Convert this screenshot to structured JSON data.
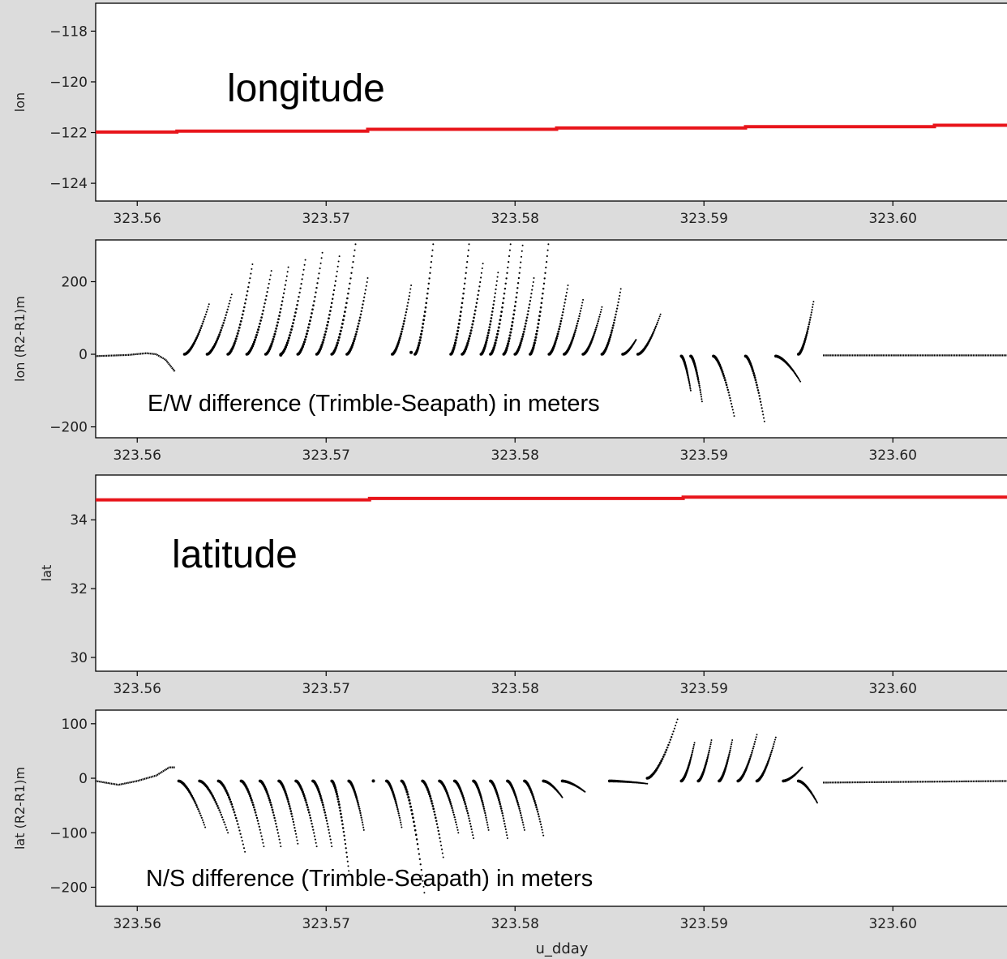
{
  "chart_data": [
    {
      "type": "line",
      "title": "",
      "ylabel": "lon",
      "xlabel": "",
      "annotation": "longitude",
      "xlim": [
        323.5578,
        323.6063
      ],
      "ylim": [
        -124.7,
        -116.9
      ],
      "xticks": [
        323.56,
        323.57,
        323.58,
        323.59,
        323.6
      ],
      "xtick_labels": [
        "323.56",
        "323.57",
        "323.58",
        "323.59",
        "323.60"
      ],
      "yticks": [
        -118,
        -120,
        -122,
        -124
      ],
      "ytick_labels": [
        "−118",
        "−120",
        "−122",
        "−124"
      ],
      "color": "#e8151b",
      "series": [
        {
          "x": [
            323.5578,
            323.5621,
            323.5621,
            323.5722,
            323.5722,
            323.5822,
            323.5822,
            323.5922,
            323.5922,
            323.6022,
            323.6022,
            323.6063
          ],
          "y": [
            -121.98,
            -121.98,
            -121.94,
            -121.94,
            -121.87,
            -121.87,
            -121.82,
            -121.82,
            -121.77,
            -121.77,
            -121.71,
            -121.71
          ]
        }
      ]
    },
    {
      "type": "scatter",
      "title": "",
      "ylabel": "lon (R2-R1)m",
      "xlabel": "",
      "annotation": "E/W difference (Trimble-Seapath) in meters",
      "xlim": [
        323.5578,
        323.6063
      ],
      "ylim": [
        -230,
        315
      ],
      "xticks": [
        323.56,
        323.57,
        323.58,
        323.59,
        323.6
      ],
      "xtick_labels": [
        "323.56",
        "323.57",
        "323.58",
        "323.59",
        "323.60"
      ],
      "yticks": [
        200,
        0,
        -200
      ],
      "ytick_labels": [
        "200",
        "0",
        "−200"
      ],
      "color": "#000000",
      "baseline": [
        [
          323.5578,
          -5
        ],
        [
          323.5595,
          -2
        ],
        [
          323.5605,
          3
        ],
        [
          323.561,
          0
        ],
        [
          323.5615,
          -15
        ],
        [
          323.562,
          -48
        ]
      ],
      "baseline2": [
        [
          323.5963,
          -3
        ],
        [
          323.6063,
          -3
        ]
      ],
      "segments": [
        [
          323.5625,
          323.5638,
          0,
          138
        ],
        [
          323.5637,
          323.565,
          0,
          165
        ],
        [
          323.5648,
          323.5661,
          0,
          248
        ],
        [
          323.5658,
          323.5671,
          0,
          230
        ],
        [
          323.5668,
          323.568,
          0,
          240
        ],
        [
          323.5676,
          323.5689,
          0,
          260
        ],
        [
          323.5685,
          323.5698,
          0,
          280
        ],
        [
          323.5695,
          323.5707,
          0,
          270
        ],
        [
          323.5703,
          323.5716,
          0,
          320
        ],
        [
          323.5711,
          323.5722,
          0,
          210
        ],
        [
          323.5735,
          323.5745,
          0,
          190
        ],
        [
          323.5747,
          323.5757,
          0,
          320
        ],
        [
          323.5766,
          323.5776,
          0,
          320
        ],
        [
          323.5772,
          323.5783,
          0,
          250
        ],
        [
          323.5782,
          323.5791,
          0,
          225
        ],
        [
          323.5787,
          323.5798,
          0,
          320
        ],
        [
          323.5794,
          323.5804,
          0,
          300
        ],
        [
          323.58,
          323.581,
          0,
          210
        ],
        [
          323.5808,
          323.5818,
          0,
          320
        ],
        [
          323.5818,
          323.5828,
          0,
          190
        ],
        [
          323.5826,
          323.5836,
          0,
          150
        ],
        [
          323.5836,
          323.5846,
          0,
          130
        ],
        [
          323.5846,
          323.5856,
          0,
          180
        ],
        [
          323.5857,
          323.5864,
          0,
          40
        ],
        [
          323.5865,
          323.5877,
          0,
          110
        ],
        [
          323.5888,
          323.5893,
          -5,
          -100
        ],
        [
          323.5893,
          323.5899,
          -5,
          -130
        ],
        [
          323.5905,
          323.5916,
          -5,
          -170
        ],
        [
          323.5922,
          323.5932,
          -5,
          -185
        ],
        [
          323.5938,
          323.5951,
          -5,
          -75
        ],
        [
          323.595,
          323.5958,
          0,
          145
        ]
      ],
      "dots": [
        [
          323.5745,
          5
        ],
        [
          323.5676,
          -2
        ]
      ]
    },
    {
      "type": "line",
      "title": "",
      "ylabel": "lat",
      "xlabel": "",
      "annotation": "latitude",
      "xlim": [
        323.5578,
        323.6063
      ],
      "ylim": [
        29.6,
        35.3
      ],
      "xticks": [
        323.56,
        323.57,
        323.58,
        323.59,
        323.6
      ],
      "xtick_labels": [
        "323.56",
        "323.57",
        "323.58",
        "323.59",
        "323.60"
      ],
      "yticks": [
        34,
        32,
        30
      ],
      "ytick_labels": [
        "34",
        "32",
        "30"
      ],
      "color": "#e8151b",
      "series": [
        {
          "x": [
            323.5578,
            323.5723,
            323.5723,
            323.5889,
            323.5889,
            323.6063
          ],
          "y": [
            34.58,
            34.58,
            34.62,
            34.62,
            34.66,
            34.66
          ]
        }
      ]
    },
    {
      "type": "scatter",
      "title": "",
      "ylabel": "lat (R2-R1)m",
      "xlabel": "u_dday",
      "annotation": "N/S difference (Trimble-Seapath) in meters",
      "xlim": [
        323.5578,
        323.6063
      ],
      "ylim": [
        -235,
        125
      ],
      "xticks": [
        323.56,
        323.57,
        323.58,
        323.59,
        323.6
      ],
      "xtick_labels": [
        "323.56",
        "323.57",
        "323.58",
        "323.59",
        "323.60"
      ],
      "yticks": [
        100,
        0,
        -100,
        -200
      ],
      "ytick_labels": [
        "100",
        "0",
        "−100",
        "−200"
      ],
      "color": "#000000",
      "baseline": [
        [
          323.5578,
          -5
        ],
        [
          323.559,
          -12
        ],
        [
          323.56,
          -5
        ],
        [
          323.561,
          5
        ],
        [
          323.5617,
          20
        ],
        [
          323.562,
          20
        ]
      ],
      "baseline2": [
        [
          323.5963,
          -8
        ],
        [
          323.6063,
          -5
        ]
      ],
      "segments": [
        [
          323.5622,
          323.5636,
          -5,
          -90
        ],
        [
          323.5633,
          323.5648,
          -5,
          -100
        ],
        [
          323.5643,
          323.5657,
          -5,
          -135
        ],
        [
          323.5655,
          323.5667,
          -5,
          -125
        ],
        [
          323.5665,
          323.5676,
          -5,
          -125
        ],
        [
          323.5675,
          323.5685,
          -5,
          -120
        ],
        [
          323.5684,
          323.5695,
          -5,
          -125
        ],
        [
          323.5693,
          323.5703,
          -5,
          -125
        ],
        [
          323.5703,
          323.5712,
          -5,
          -170
        ],
        [
          323.5712,
          323.572,
          -5,
          -95
        ],
        [
          323.5732,
          323.574,
          -5,
          -90
        ],
        [
          323.574,
          323.5752,
          -5,
          -210
        ],
        [
          323.5751,
          323.5762,
          -5,
          -145
        ],
        [
          323.576,
          323.577,
          -5,
          -100
        ],
        [
          323.5768,
          323.5778,
          -5,
          -110
        ],
        [
          323.5778,
          323.5786,
          -5,
          -95
        ],
        [
          323.5787,
          323.5796,
          -5,
          -110
        ],
        [
          323.5796,
          323.5805,
          -5,
          -95
        ],
        [
          323.5805,
          323.5815,
          -5,
          -105
        ],
        [
          323.5815,
          323.5825,
          -5,
          -35
        ],
        [
          323.5825,
          323.5837,
          -5,
          -25
        ],
        [
          323.585,
          323.587,
          -5,
          -10
        ],
        [
          323.587,
          323.5886,
          0,
          108
        ],
        [
          323.5888,
          323.5895,
          -5,
          65
        ],
        [
          323.5897,
          323.5904,
          -5,
          70
        ],
        [
          323.5908,
          323.5915,
          -5,
          70
        ],
        [
          323.5918,
          323.5928,
          -5,
          80
        ],
        [
          323.5928,
          323.5938,
          -5,
          75
        ],
        [
          323.5942,
          323.5952,
          -5,
          20
        ],
        [
          323.595,
          323.596,
          -5,
          -45
        ]
      ],
      "dots": [
        [
          323.5725,
          -5
        ]
      ]
    }
  ]
}
